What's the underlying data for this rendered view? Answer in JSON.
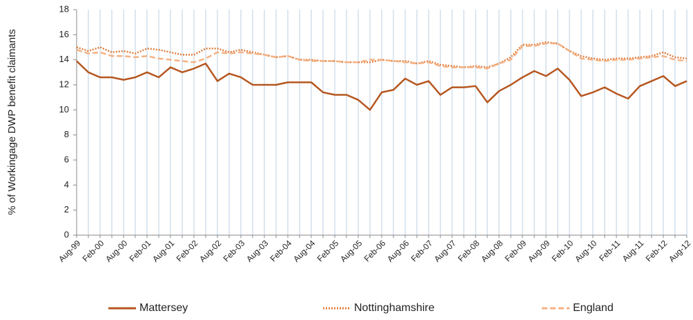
{
  "chart_data": {
    "type": "line",
    "y_label": "% of Workingage DWP benefit claimants",
    "categories": [
      "Aug-99",
      null,
      "Feb-00",
      null,
      "Aug-00",
      null,
      "Feb-01",
      null,
      "Aug-01",
      null,
      "Feb-02",
      null,
      "Aug-02",
      null,
      "Feb-03",
      null,
      "Aug-03",
      null,
      "Feb-04",
      null,
      "Aug-04",
      null,
      "Feb-05",
      null,
      "Aug-05",
      null,
      "Feb-06",
      null,
      "Aug-06",
      null,
      "Feb-07",
      null,
      "Aug-07",
      null,
      "Feb-08",
      null,
      "Aug-08",
      null,
      "Feb-09",
      null,
      "Aug-09",
      null,
      "Feb-10",
      null,
      "Aug-10",
      null,
      "Feb-11",
      null,
      "Aug-11",
      null,
      "Feb-12",
      null,
      "Aug-12"
    ],
    "series": [
      {
        "name": "Mattersey",
        "color": "#b5561f",
        "style": "solid",
        "values": [
          13.9,
          13.0,
          12.6,
          12.6,
          12.4,
          12.6,
          13.0,
          12.6,
          13.4,
          13.0,
          13.3,
          13.7,
          12.3,
          12.9,
          12.6,
          12.0,
          12.0,
          12.0,
          12.2,
          12.2,
          12.2,
          11.4,
          11.2,
          11.2,
          10.8,
          10.0,
          11.4,
          11.6,
          12.5,
          12.0,
          12.3,
          11.2,
          11.8,
          11.8,
          11.9,
          10.6,
          11.5,
          12.0,
          12.6,
          13.1,
          12.7,
          13.3,
          12.4,
          11.1,
          11.4,
          11.8,
          11.3,
          10.9,
          11.9,
          12.3,
          12.7,
          11.9,
          12.3
        ]
      },
      {
        "name": "Nottinghamshire",
        "color": "#e07b39",
        "style": "dotted",
        "values": [
          15.0,
          14.7,
          15.0,
          14.6,
          14.7,
          14.5,
          14.9,
          14.8,
          14.6,
          14.4,
          14.4,
          14.9,
          14.9,
          14.6,
          14.8,
          14.6,
          14.4,
          14.2,
          14.3,
          14.0,
          14.0,
          13.9,
          13.9,
          13.8,
          13.8,
          13.8,
          14.0,
          13.9,
          13.9,
          13.7,
          13.9,
          13.6,
          13.5,
          13.4,
          13.5,
          13.4,
          13.7,
          14.2,
          15.2,
          15.2,
          15.4,
          15.3,
          14.7,
          14.3,
          14.1,
          14.0,
          14.1,
          14.1,
          14.2,
          14.3,
          14.6,
          14.2,
          14.1
        ]
      },
      {
        "name": "England",
        "color": "#f4b183",
        "style": "dashed",
        "values": [
          14.8,
          14.5,
          14.6,
          14.3,
          14.3,
          14.2,
          14.3,
          14.1,
          14.0,
          13.9,
          13.8,
          14.1,
          14.6,
          14.5,
          14.6,
          14.5,
          14.4,
          14.2,
          14.3,
          14.0,
          13.9,
          13.9,
          13.9,
          13.8,
          13.8,
          14.0,
          14.0,
          13.9,
          13.8,
          13.7,
          13.8,
          13.5,
          13.4,
          13.4,
          13.4,
          13.3,
          13.7,
          14.0,
          15.1,
          15.1,
          15.3,
          15.3,
          14.7,
          14.1,
          14.0,
          13.9,
          14.0,
          14.0,
          14.1,
          14.2,
          14.3,
          14.0,
          13.9
        ]
      }
    ],
    "ylim": [
      0,
      18
    ],
    "yticks": [
      0,
      2,
      4,
      6,
      8,
      10,
      12,
      14,
      16,
      18
    ],
    "x_grid": true,
    "legend": "bottom"
  }
}
